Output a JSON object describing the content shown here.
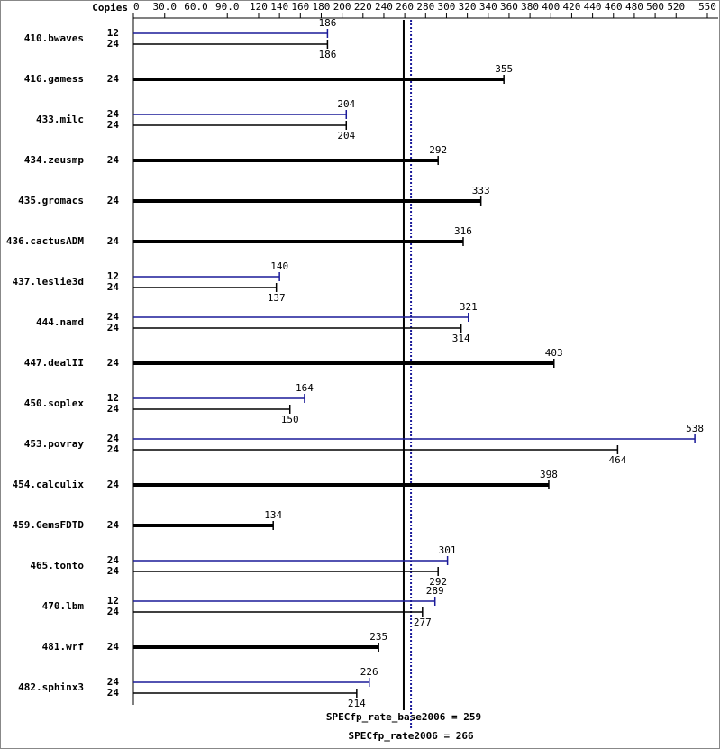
{
  "chart_data": {
    "type": "spec-bar",
    "copies_header": "Copies",
    "categories": [
      "410.bwaves",
      "416.gamess",
      "433.milc",
      "434.zeusmp",
      "435.gromacs",
      "436.cactusADM",
      "437.leslie3d",
      "444.namd",
      "447.dealII",
      "450.soplex",
      "453.povray",
      "454.calculix",
      "459.GemsFDTD",
      "465.tonto",
      "470.lbm",
      "481.wrf",
      "482.sphinx3"
    ],
    "series": [
      {
        "color": "#1a1a99",
        "copies": [
          12,
          null,
          24,
          null,
          null,
          null,
          12,
          24,
          null,
          12,
          24,
          null,
          null,
          24,
          12,
          null,
          24
        ],
        "values": [
          186,
          null,
          204,
          null,
          null,
          null,
          140,
          321,
          null,
          164,
          538,
          null,
          null,
          301,
          289,
          null,
          226
        ]
      },
      {
        "color": "#000000",
        "copies": [
          24,
          24,
          24,
          24,
          24,
          24,
          24,
          24,
          24,
          24,
          24,
          24,
          24,
          24,
          24,
          24,
          24
        ],
        "values": [
          186,
          355,
          204,
          292,
          333,
          316,
          137,
          314,
          403,
          150,
          464,
          398,
          134,
          292,
          277,
          235,
          214
        ]
      }
    ],
    "xlim": [
      0,
      550
    ],
    "xticks": [
      0,
      {
        "value": 30,
        "label": "30.0"
      },
      {
        "value": 60,
        "label": "60.0"
      },
      {
        "value": 90,
        "label": "90.0"
      },
      120,
      140,
      160,
      180,
      200,
      220,
      240,
      260,
      280,
      300,
      320,
      340,
      360,
      380,
      400,
      420,
      440,
      460,
      480,
      500,
      520,
      550
    ],
    "reference_lines": [
      {
        "label": "SPECfp_rate_base2006 = 259",
        "value": 259,
        "color": "#000000",
        "style": "solid"
      },
      {
        "label": "SPECfp_rate2006 = 266",
        "value": 266,
        "color": "#1a1a99",
        "style": "dotted"
      }
    ]
  }
}
